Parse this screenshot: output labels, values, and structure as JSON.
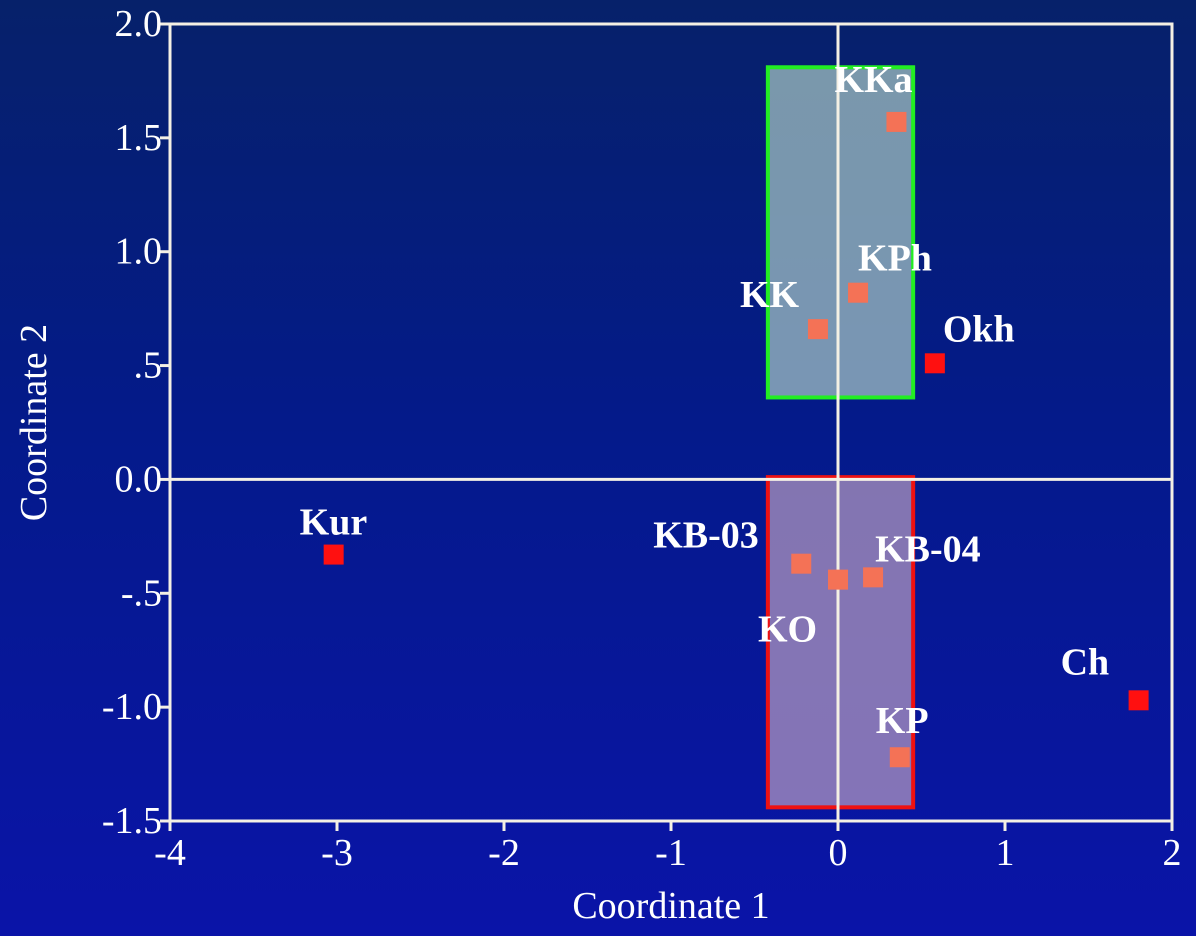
{
  "chart_data": {
    "type": "scatter",
    "title": "",
    "xlabel": "Coordinate 1",
    "ylabel": "Coordinate 2",
    "xlim": [
      -4,
      2
    ],
    "ylim": [
      -1.5,
      2.0
    ],
    "x_ticks": [
      {
        "value": -4,
        "label": "-4"
      },
      {
        "value": -3,
        "label": "-3"
      },
      {
        "value": -2,
        "label": "-2"
      },
      {
        "value": -1,
        "label": "-1"
      },
      {
        "value": 0,
        "label": "0"
      },
      {
        "value": 1,
        "label": "1"
      },
      {
        "value": 2,
        "label": "2"
      }
    ],
    "y_ticks": [
      {
        "value": 2.0,
        "label": "2.0"
      },
      {
        "value": 1.5,
        "label": "1.5"
      },
      {
        "value": 1.0,
        "label": "1.0"
      },
      {
        "value": 0.5,
        "label": ".5"
      },
      {
        "value": 0.0,
        "label": "0.0"
      },
      {
        "value": -0.5,
        "label": "-.5"
      },
      {
        "value": -1.0,
        "label": "-1.0"
      },
      {
        "value": -1.5,
        "label": "-1.5"
      }
    ],
    "reference_lines": {
      "x": 0,
      "y": 0
    },
    "grid": false,
    "points": [
      {
        "label": "KKa",
        "x": 0.35,
        "y": 1.57
      },
      {
        "label": "KPh",
        "x": 0.12,
        "y": 0.82
      },
      {
        "label": "KK",
        "x": -0.12,
        "y": 0.66
      },
      {
        "label": "Okh",
        "x": 0.58,
        "y": 0.51
      },
      {
        "label": "Kur",
        "x": -3.02,
        "y": -0.33
      },
      {
        "label": "KB-03",
        "x": -0.22,
        "y": -0.37
      },
      {
        "label": "KO",
        "x": 0.0,
        "y": -0.44
      },
      {
        "label": "KB-04",
        "x": 0.21,
        "y": -0.43
      },
      {
        "label": "Ch",
        "x": 1.8,
        "y": -0.97
      },
      {
        "label": "KP",
        "x": 0.37,
        "y": -1.22
      }
    ],
    "groups": [
      {
        "color": "#22ee22",
        "x_range": [
          -0.42,
          0.45
        ],
        "y_range": [
          0.36,
          1.81
        ]
      },
      {
        "color": "#ee1111",
        "x_range": [
          -0.42,
          0.45
        ],
        "y_range": [
          -1.44,
          0.01
        ]
      }
    ],
    "colors": {
      "marker": "#ff1010",
      "frame": "#f4f0e4",
      "text": "#ffffff"
    }
  }
}
